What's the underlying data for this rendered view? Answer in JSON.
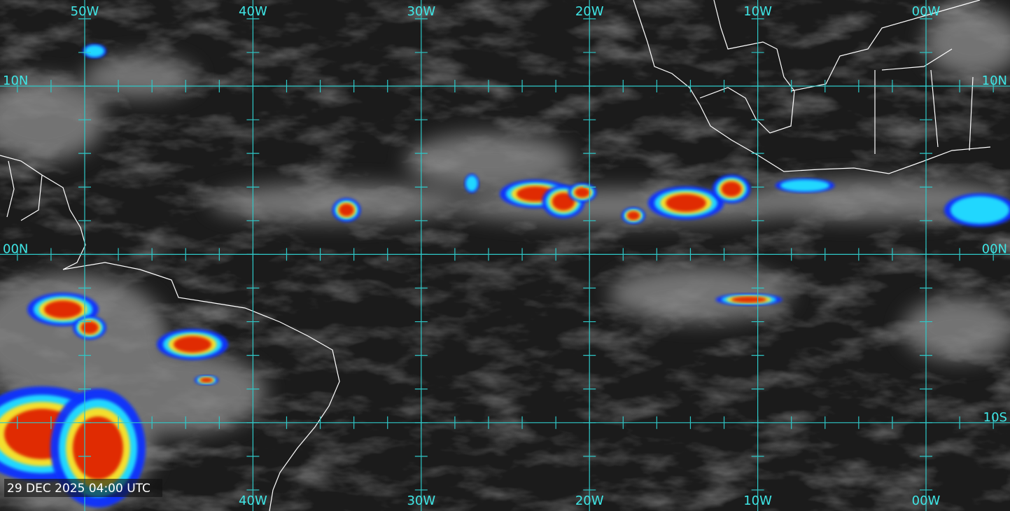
{
  "top_labels": [
    "50W",
    "40W",
    "30W",
    "20W",
    "10W",
    "00W"
  ],
  "bottom_labels": [
    "40W",
    "30W",
    "20W",
    "10W",
    "00W"
  ],
  "left_labels": [
    "10N",
    "00N"
  ],
  "right_labels": [
    "10N",
    "00N",
    "10S"
  ],
  "timestamp": "29 DEC 2025 04:00 UTC"
}
